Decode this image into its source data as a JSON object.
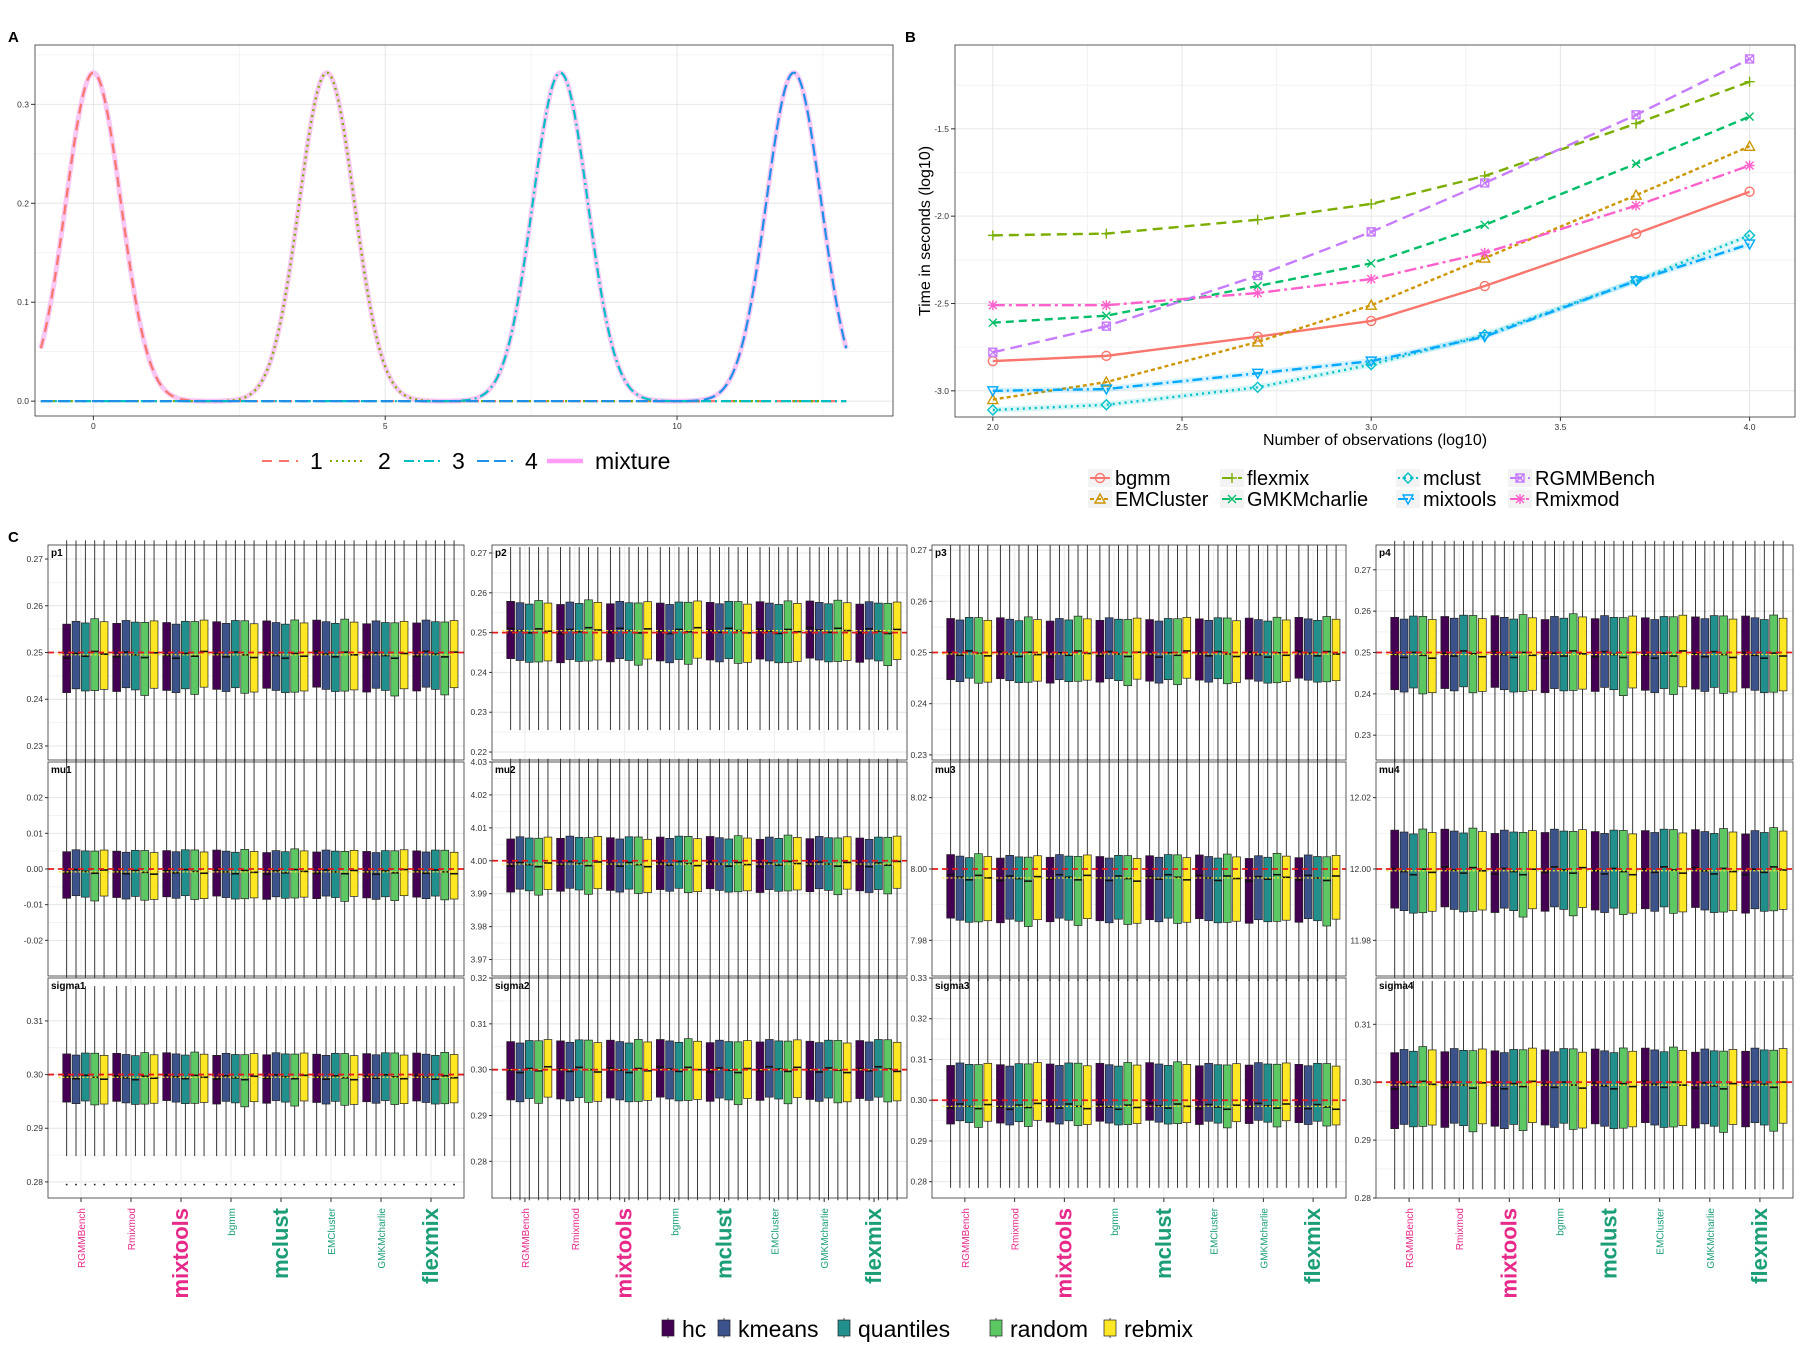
{
  "chart_data": [
    {
      "type": "line",
      "panel_label": "A",
      "x_ticks": [
        0,
        5,
        10
      ],
      "y_ticks": [
        0.0,
        0.1,
        0.2,
        0.3
      ],
      "xlim": [
        -1.0,
        13.7
      ],
      "ylim": [
        -0.015,
        0.36
      ],
      "x_range": [
        -0.9,
        12.9
      ],
      "sd": 1.2,
      "peak_value": 0.332,
      "series": [
        {
          "name": "1",
          "mean": 0,
          "color": "#F8766D",
          "dash": "10,7",
          "width": 2.2
        },
        {
          "name": "2",
          "mean": 4,
          "color": "#7CAE00",
          "dash": "2,4",
          "width": 2.2
        },
        {
          "name": "3",
          "mean": 8,
          "color": "#00BFC4",
          "dash": "10,4,2,4",
          "width": 2.2
        },
        {
          "name": "4",
          "mean": 12,
          "color": "#1F90E8",
          "dash": "12,5",
          "width": 2.2
        },
        {
          "name": "mixture",
          "mean": null,
          "color": "#FF9DF6",
          "dash": "",
          "width": 4.5
        }
      ],
      "mixture_curve_color": "#F9C7F3",
      "grid": true,
      "legend_position": "bottom"
    },
    {
      "type": "line",
      "panel_label": "B",
      "xlabel": "Number of observations (log10)",
      "ylabel": "Time in seconds (log10)",
      "x_ticks": [
        2.0,
        2.5,
        3.0,
        3.5,
        4.0
      ],
      "y_ticks": [
        -3.0,
        -2.5,
        -2.0,
        -1.5
      ],
      "xlim": [
        1.9,
        4.12
      ],
      "ylim": [
        -3.15,
        -1.02
      ],
      "x": [
        2.0,
        2.3,
        2.7,
        3.0,
        3.3,
        3.7,
        4.0
      ],
      "series": [
        {
          "name": "bgmm",
          "color": "#F8766D",
          "dash": "",
          "marker": "circle",
          "values": [
            -2.83,
            -2.8,
            -2.69,
            -2.6,
            -2.4,
            -2.1,
            -1.86
          ]
        },
        {
          "name": "EMCluster",
          "color": "#CD9600",
          "dash": "4,3",
          "marker": "triangle",
          "values": [
            -3.05,
            -2.95,
            -2.72,
            -2.51,
            -2.24,
            -1.88,
            -1.6
          ]
        },
        {
          "name": "flexmix",
          "color": "#7CAE00",
          "dash": "10,6",
          "marker": "plus",
          "values": [
            -2.11,
            -2.1,
            -2.02,
            -1.93,
            -1.77,
            -1.47,
            -1.23
          ]
        },
        {
          "name": "GMKMcharlie",
          "color": "#00BE67",
          "dash": "8,5",
          "marker": "x",
          "values": [
            -2.61,
            -2.57,
            -2.4,
            -2.27,
            -2.05,
            -1.7,
            -1.43
          ]
        },
        {
          "name": "mclust",
          "color": "#00C1C9",
          "dash": "2,4",
          "marker": "diamond",
          "values": [
            -3.11,
            -3.08,
            -2.98,
            -2.85,
            -2.68,
            -2.37,
            -2.11
          ]
        },
        {
          "name": "mixtools",
          "color": "#00A9FF",
          "dash": "10,4,2,4",
          "marker": "triangle-down",
          "values": [
            -3.0,
            -2.99,
            -2.9,
            -2.83,
            -2.69,
            -2.37,
            -2.16
          ]
        },
        {
          "name": "RGMMBench",
          "color": "#C77CFF",
          "dash": "12,6",
          "marker": "square-x",
          "values": [
            -2.78,
            -2.63,
            -2.34,
            -2.09,
            -1.81,
            -1.42,
            -1.1
          ]
        },
        {
          "name": "Rmixmod",
          "color": "#FF61CC",
          "dash": "12,4,3,4",
          "marker": "asterisk",
          "values": [
            -2.51,
            -2.51,
            -2.44,
            -2.36,
            -2.21,
            -1.94,
            -1.71
          ]
        }
      ],
      "grid": true,
      "legend_position": "bottom"
    },
    {
      "type": "box",
      "panel_label": "C",
      "packages": [
        "RGMMBench",
        "Rmixmod",
        "mixtools",
        "bgmm",
        "mclust",
        "EMCluster",
        "GMKMcharlie",
        "flexmix"
      ],
      "package_colors": {
        "RGMMBench": "#E7298A",
        "Rmixmod": "#E7298A",
        "mixtools": "#E7298A",
        "bgmm": "#1B9E77",
        "mclust": "#1B9E77",
        "EMCluster": "#1B9E77",
        "GMKMcharlie": "#1B9E77",
        "flexmix": "#1B9E77"
      },
      "emphasized_packages": [
        "mixtools",
        "mclust",
        "flexmix"
      ],
      "initialisations": [
        {
          "name": "hc",
          "color": "#440154"
        },
        {
          "name": "kmeans",
          "color": "#3B528B"
        },
        {
          "name": "quantiles",
          "color": "#21908C"
        },
        {
          "name": "random",
          "color": "#5DC863"
        },
        {
          "name": "rebmix",
          "color": "#FDE725"
        }
      ],
      "facets": [
        {
          "label": "p1",
          "truth": 0.25,
          "ylim": [
            0.227,
            0.273
          ],
          "ticks": [
            0.23,
            0.24,
            0.25,
            0.26,
            0.27
          ],
          "tick_labels": [
            "0.23",
            "0.24",
            "0.25",
            "0.26",
            "0.27"
          ],
          "q1": 0.242,
          "q3": 0.2565,
          "median": 0.2495,
          "wlo": 0.226,
          "whi": 0.274
        },
        {
          "label": "p2",
          "truth": 0.25,
          "ylim": [
            0.218,
            0.272
          ],
          "ticks": [
            0.22,
            0.23,
            0.24,
            0.25,
            0.26,
            0.27
          ],
          "tick_labels": [
            "0.22",
            "0.23",
            "0.24",
            "0.25",
            "0.26",
            "0.27"
          ],
          "q1": 0.243,
          "q3": 0.2575,
          "median": 0.2505,
          "wlo": 0.2255,
          "whi": 0.2715
        },
        {
          "label": "p3",
          "truth": 0.25,
          "ylim": [
            0.229,
            0.271
          ],
          "ticks": [
            0.23,
            0.24,
            0.25,
            0.26,
            0.27
          ],
          "tick_labels": [
            "0.23",
            "0.24",
            "0.25",
            "0.26",
            "0.27"
          ],
          "q1": 0.2445,
          "q3": 0.2565,
          "median": 0.2497,
          "wlo": 0.229,
          "whi": 0.271
        },
        {
          "label": "p4",
          "truth": 0.25,
          "ylim": [
            0.224,
            0.276
          ],
          "ticks": [
            0.23,
            0.24,
            0.25,
            0.26,
            0.27
          ],
          "tick_labels": [
            "0.23",
            "0.24",
            "0.25",
            "0.26",
            "0.27"
          ],
          "q1": 0.241,
          "q3": 0.2585,
          "median": 0.2495,
          "wlo": 0.223,
          "whi": 0.277
        },
        {
          "label": "mu1",
          "truth": 0.0,
          "ylim": [
            -0.03,
            0.03
          ],
          "ticks": [
            -0.02,
            -0.01,
            0.0,
            0.01,
            0.02
          ],
          "tick_labels": [
            "-0.02",
            "-0.01",
            "0.00",
            "0.01",
            "0.02"
          ],
          "q1": -0.008,
          "q3": 0.005,
          "median": -0.0008,
          "wlo": -0.031,
          "whi": 0.031
        },
        {
          "label": "mu2",
          "truth": 4.0,
          "ylim": [
            3.965,
            4.03
          ],
          "ticks": [
            3.97,
            3.98,
            3.99,
            4.0,
            4.01,
            4.02,
            4.03
          ],
          "tick_labels": [
            "3.97",
            "3.98",
            "3.99",
            "4.00",
            "4.01",
            "4.02",
            "4.03"
          ],
          "q1": 3.991,
          "q3": 4.007,
          "median": 3.999,
          "wlo": 3.964,
          "whi": 4.031
        },
        {
          "label": "mu3",
          "truth": 8.0,
          "ylim": [
            7.97,
            8.03
          ],
          "ticks": [
            7.98,
            8.0,
            8.02
          ],
          "tick_labels": [
            "7.98",
            "8.00",
            "8.02"
          ],
          "q1": 7.9855,
          "q3": 8.0035,
          "median": 7.9975,
          "wlo": 7.969,
          "whi": 8.031
        },
        {
          "label": "mu4",
          "truth": 12.0,
          "ylim": [
            11.97,
            12.03
          ],
          "ticks": [
            11.98,
            12.0,
            12.02
          ],
          "tick_labels": [
            "11.98",
            "12.00",
            "12.02"
          ],
          "q1": 11.9885,
          "q3": 12.0105,
          "median": 11.9995,
          "wlo": 11.969,
          "whi": 12.031
        },
        {
          "label": "sigma1",
          "truth": 0.3,
          "ylim": [
            0.277,
            0.318
          ],
          "ticks": [
            0.28,
            0.29,
            0.3,
            0.31
          ],
          "tick_labels": [
            "0.28",
            "0.29",
            "0.30",
            "0.31"
          ],
          "q1": 0.2948,
          "q3": 0.3038,
          "median": 0.2995,
          "wlo": 0.2848,
          "whi": 0.3165,
          "outlier": 0.2795
        },
        {
          "label": "sigma2",
          "truth": 0.3,
          "ylim": [
            0.272,
            0.32
          ],
          "ticks": [
            0.28,
            0.29,
            0.3,
            0.31,
            0.32
          ],
          "tick_labels": [
            "0.28",
            "0.29",
            "0.30",
            "0.31",
            "0.32"
          ],
          "q1": 0.2935,
          "q3": 0.3062,
          "median": 0.3,
          "wlo": 0.2715,
          "whi": 0.3205
        },
        {
          "label": "sigma3",
          "truth": 0.3,
          "ylim": [
            0.276,
            0.33
          ],
          "ticks": [
            0.28,
            0.29,
            0.3,
            0.31,
            0.32,
            0.33
          ],
          "tick_labels": [
            "0.28",
            "0.29",
            "0.30",
            "0.31",
            "0.32",
            "0.33"
          ],
          "q1": 0.2945,
          "q3": 0.3088,
          "median": 0.2985,
          "wlo": 0.2785,
          "whi": 0.3305,
          "outlier": 0.3295
        },
        {
          "label": "sigma4",
          "truth": 0.3,
          "ylim": [
            0.28,
            0.318
          ],
          "ticks": [
            0.28,
            0.29,
            0.3,
            0.31
          ],
          "tick_labels": [
            "0.28",
            "0.29",
            "0.30",
            "0.31"
          ],
          "q1": 0.2925,
          "q3": 0.3055,
          "median": 0.2995,
          "wlo": 0.2815,
          "whi": 0.3175
        }
      ],
      "truth_line_color": "#E41A1C",
      "mean_line_color": "#FDE725",
      "legend_position": "bottom"
    }
  ]
}
